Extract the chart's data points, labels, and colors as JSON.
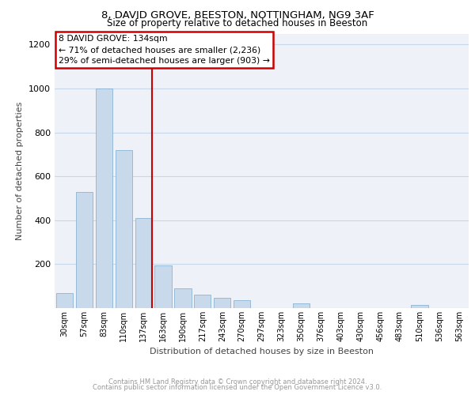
{
  "title_line1": "8, DAVID GROVE, BEESTON, NOTTINGHAM, NG9 3AF",
  "title_line2": "Size of property relative to detached houses in Beeston",
  "xlabel": "Distribution of detached houses by size in Beeston",
  "ylabel": "Number of detached properties",
  "footer1": "Contains HM Land Registry data © Crown copyright and database right 2024.",
  "footer2": "Contains public sector information licensed under the Open Government Licence v3.0.",
  "categories": [
    "30sqm",
    "57sqm",
    "83sqm",
    "110sqm",
    "137sqm",
    "163sqm",
    "190sqm",
    "217sqm",
    "243sqm",
    "270sqm",
    "297sqm",
    "323sqm",
    "350sqm",
    "376sqm",
    "403sqm",
    "430sqm",
    "456sqm",
    "483sqm",
    "510sqm",
    "536sqm",
    "563sqm"
  ],
  "values": [
    70,
    530,
    1000,
    720,
    410,
    195,
    90,
    60,
    45,
    37,
    0,
    0,
    20,
    0,
    0,
    0,
    0,
    0,
    15,
    0,
    0
  ],
  "bar_color": "#c9d9ec",
  "bar_edge_color": "#8ab4d4",
  "annotation_title": "8 DAVID GROVE: 134sqm",
  "annotation_line1": "← 71% of detached houses are smaller (2,236)",
  "annotation_line2": "29% of semi-detached houses are larger (903) →",
  "annotation_box_color": "#cc0000",
  "red_line_x": 4.42,
  "ylim": [
    0,
    1250
  ],
  "yticks": [
    0,
    200,
    400,
    600,
    800,
    1000,
    1200
  ],
  "grid_color": "#c8d8e8",
  "bg_color": "#eef2f8"
}
